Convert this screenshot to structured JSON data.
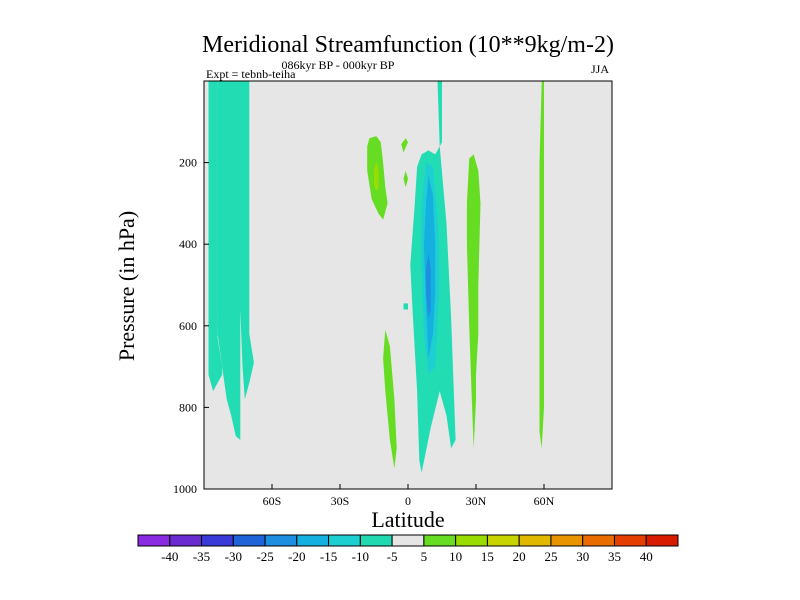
{
  "chart_data": {
    "type": "heatmap",
    "title": "Meridional Streamfunction (10**9kg/m-2)",
    "subtitle": "086kyr BP - 000kyr BP",
    "experiment_label": "Expt = tebnb-teiha",
    "season": "JJA",
    "xlabel": "Latitude",
    "ylabel": "Pressure (in hPa)",
    "xlim": [
      -90,
      90
    ],
    "ylim": [
      1000,
      0
    ],
    "x_ticks": [
      {
        "value": -60,
        "label": "60S"
      },
      {
        "value": -30,
        "label": "30S"
      },
      {
        "value": 0,
        "label": "0"
      },
      {
        "value": 30,
        "label": "30N"
      },
      {
        "value": 60,
        "label": "60N"
      }
    ],
    "y_ticks": [
      {
        "value": 200,
        "label": "200"
      },
      {
        "value": 400,
        "label": "400"
      },
      {
        "value": 600,
        "label": "600"
      },
      {
        "value": 800,
        "label": "800"
      },
      {
        "value": 1000,
        "label": "1000"
      }
    ],
    "background_color": "#e6e6e6",
    "contour_levels": [
      "-40",
      "-35",
      "-30",
      "-25",
      "-20",
      "-15",
      "-10",
      "-5",
      "5",
      "10",
      "15",
      "20",
      "25",
      "30",
      "35",
      "40"
    ],
    "colorbar_colors": [
      "#8a2be2",
      "#6a2cd0",
      "#3a3ad8",
      "#1f63d9",
      "#1e8ee0",
      "#14b0e0",
      "#1ecfd2",
      "#20d9b0",
      "#e6e6e6",
      "#66dd22",
      "#99dd00",
      "#c8d400",
      "#e0b800",
      "#e89400",
      "#e86c00",
      "#e43f00",
      "#d81c00"
    ],
    "regions": [
      {
        "name": "southern-polar-cell-a",
        "level": "-5",
        "color": "#22dcb4",
        "poly": [
          [
            -88,
            0
          ],
          [
            -84,
            0
          ],
          [
            -84,
            630
          ],
          [
            -82,
            700
          ],
          [
            -82,
            720
          ],
          [
            -84,
            740
          ],
          [
            -86,
            760
          ],
          [
            -88,
            720
          ]
        ]
      },
      {
        "name": "southern-polar-cell-b",
        "level": "-5",
        "color": "#22dcb4",
        "poly": [
          [
            -84,
            0
          ],
          [
            -70,
            0
          ],
          [
            -70,
            620
          ],
          [
            -68,
            690
          ],
          [
            -70,
            740
          ],
          [
            -72,
            780
          ],
          [
            -73,
            700
          ],
          [
            -74,
            560
          ],
          [
            -74,
            880
          ],
          [
            -76,
            870
          ],
          [
            -78,
            820
          ],
          [
            -80,
            780
          ],
          [
            -82,
            700
          ],
          [
            -84,
            620
          ]
        ]
      },
      {
        "name": "subtropical-upper-positive",
        "level": "10",
        "color": "#66dd22",
        "poly": [
          [
            -17,
            140
          ],
          [
            -14,
            135
          ],
          [
            -12,
            150
          ],
          [
            -11,
            200
          ],
          [
            -10,
            260
          ],
          [
            -9,
            300
          ],
          [
            -11,
            340
          ],
          [
            -13,
            325
          ],
          [
            -16,
            290
          ],
          [
            -18,
            220
          ],
          [
            -18,
            160
          ]
        ]
      },
      {
        "name": "subtropical-upper-core",
        "level": "15",
        "color": "#99dd00",
        "poly": [
          [
            -14,
            200
          ],
          [
            -13,
            210
          ],
          [
            -13,
            260
          ],
          [
            -14,
            270
          ],
          [
            -15,
            255
          ],
          [
            -15,
            215
          ]
        ]
      },
      {
        "name": "small-positive-a",
        "level": "10",
        "color": "#66dd22",
        "poly": [
          [
            -1,
            140
          ],
          [
            0,
            150
          ],
          [
            -2,
            175
          ],
          [
            -3,
            155
          ]
        ]
      },
      {
        "name": "small-positive-b",
        "level": "10",
        "color": "#66dd22",
        "poly": [
          [
            -1,
            220
          ],
          [
            0,
            240
          ],
          [
            -1,
            260
          ],
          [
            -2,
            240
          ]
        ]
      },
      {
        "name": "equatorial-lower-positive",
        "level": "10",
        "color": "#66dd22",
        "poly": [
          [
            -10,
            610
          ],
          [
            -8,
            650
          ],
          [
            -6,
            780
          ],
          [
            -5,
            900
          ],
          [
            -6,
            950
          ],
          [
            -8,
            880
          ],
          [
            -10,
            760
          ],
          [
            -11,
            680
          ]
        ]
      },
      {
        "name": "tropical-negative-cell",
        "level": "-5",
        "color": "#22dcb4",
        "poly": [
          [
            13,
            0
          ],
          [
            15,
            0
          ],
          [
            15,
            150
          ],
          [
            12,
            180
          ],
          [
            9,
            170
          ],
          [
            6,
            180
          ],
          [
            4,
            210
          ],
          [
            3,
            300
          ],
          [
            1,
            450
          ],
          [
            2,
            560
          ],
          [
            4,
            760
          ],
          [
            5,
            930
          ],
          [
            6,
            960
          ],
          [
            10,
            850
          ],
          [
            14,
            760
          ],
          [
            17,
            820
          ],
          [
            19,
            900
          ],
          [
            21,
            880
          ],
          [
            19,
            580
          ],
          [
            17,
            350
          ],
          [
            14,
            160
          ]
        ]
      },
      {
        "name": "tropical-negative-inner",
        "level": "-10",
        "color": "#1ecfd2",
        "poly": [
          [
            8,
            200
          ],
          [
            11,
            210
          ],
          [
            13,
            330
          ],
          [
            14,
            470
          ],
          [
            13,
            600
          ],
          [
            12,
            700
          ],
          [
            9,
            720
          ],
          [
            7,
            620
          ],
          [
            6,
            460
          ],
          [
            6,
            300
          ]
        ]
      },
      {
        "name": "tropical-negative-deep",
        "level": "-15",
        "color": "#14b0e0",
        "poly": [
          [
            9,
            230
          ],
          [
            11,
            280
          ],
          [
            12,
            400
          ],
          [
            12,
            520
          ],
          [
            11,
            620
          ],
          [
            9,
            680
          ],
          [
            8,
            560
          ],
          [
            7,
            400
          ],
          [
            8,
            300
          ]
        ]
      },
      {
        "name": "tropical-negative-core",
        "level": "-25",
        "color": "#1e8ee0",
        "poly": [
          [
            9,
            420
          ],
          [
            10,
            460
          ],
          [
            10,
            560
          ],
          [
            9,
            580
          ],
          [
            8,
            520
          ],
          [
            8,
            460
          ]
        ]
      },
      {
        "name": "tropical-negative-spot",
        "level": "-5",
        "color": "#22dcb4",
        "poly": [
          [
            -2,
            545
          ],
          [
            0,
            545
          ],
          [
            0,
            560
          ],
          [
            -2,
            560
          ]
        ]
      },
      {
        "name": "nh-subtropical-positive",
        "level": "10",
        "color": "#66dd22",
        "poly": [
          [
            27,
            190
          ],
          [
            29,
            180
          ],
          [
            31,
            220
          ],
          [
            32,
            300
          ],
          [
            31,
            500
          ],
          [
            31,
            620
          ],
          [
            30,
            720
          ],
          [
            30,
            780
          ],
          [
            29,
            900
          ],
          [
            28,
            760
          ],
          [
            27,
            600
          ],
          [
            26,
            400
          ],
          [
            26,
            300
          ]
        ]
      },
      {
        "name": "nh-highlat-positive",
        "level": "10",
        "color": "#66dd22",
        "poly": [
          [
            59,
            0
          ],
          [
            60,
            0
          ],
          [
            60,
            100
          ],
          [
            60,
            300
          ],
          [
            60,
            600
          ],
          [
            60,
            800
          ],
          [
            59,
            900
          ],
          [
            58,
            860
          ],
          [
            58,
            700
          ],
          [
            58,
            400
          ],
          [
            58,
            200
          ]
        ]
      }
    ]
  }
}
